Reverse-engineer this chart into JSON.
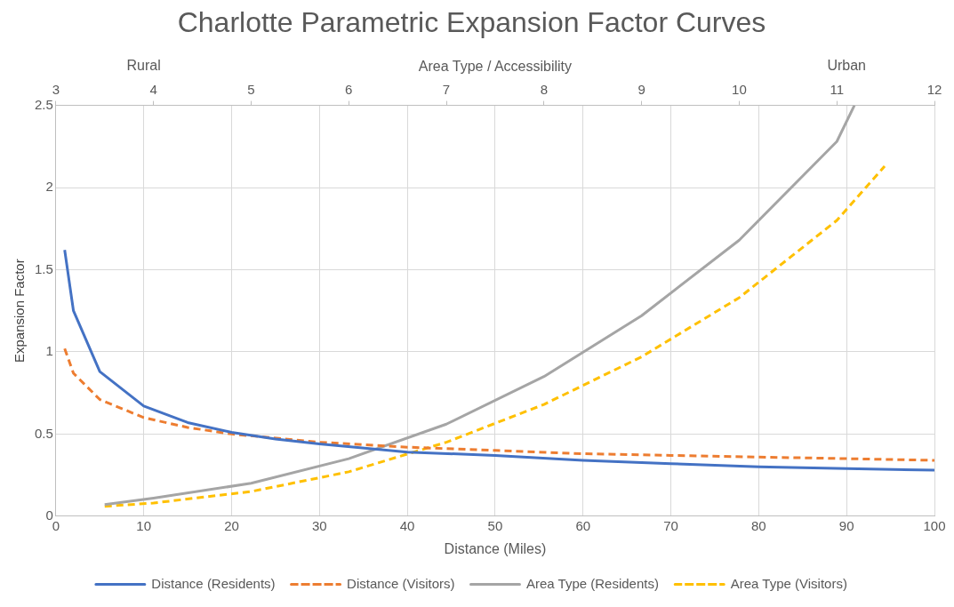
{
  "chart_data": {
    "type": "line",
    "title": "Charlotte Parametric Expansion Factor Curves",
    "xlabel": "Distance (Miles)",
    "ylabel": "Expansion Factor",
    "x2label": "Area Type / Accessibility",
    "annotations": [
      "Rural",
      "Urban"
    ],
    "xlim": [
      0,
      100
    ],
    "xticks": [
      0,
      10,
      20,
      30,
      40,
      50,
      60,
      70,
      80,
      90,
      100
    ],
    "x2lim": [
      3,
      12
    ],
    "x2ticks": [
      3,
      4,
      5,
      6,
      7,
      8,
      9,
      10,
      11,
      12
    ],
    "ylim": [
      0,
      2.5
    ],
    "yticks": [
      0,
      0.5,
      1,
      1.5,
      2,
      2.5
    ],
    "grid": true,
    "legend": "bottom",
    "marker": "none",
    "series": [
      {
        "name": "Distance (Residents)",
        "color": "#4472c4",
        "line_style": "solid",
        "x": [
          1,
          2,
          5,
          10,
          15,
          20,
          25,
          30,
          40,
          50,
          60,
          70,
          80,
          90,
          100
        ],
        "values": [
          1.62,
          1.25,
          0.88,
          0.67,
          0.57,
          0.51,
          0.47,
          0.44,
          0.39,
          0.37,
          0.34,
          0.32,
          0.3,
          0.29,
          0.28
        ]
      },
      {
        "name": "Distance (Visitors)",
        "color": "#ed7d31",
        "line_style": "dashed",
        "x": [
          1,
          2,
          5,
          10,
          15,
          20,
          30,
          40,
          50,
          60,
          70,
          80,
          90,
          100
        ],
        "values": [
          1.02,
          0.87,
          0.71,
          0.6,
          0.54,
          0.5,
          0.45,
          0.42,
          0.4,
          0.38,
          0.37,
          0.36,
          0.35,
          0.34
        ]
      },
      {
        "name": "Area Type (Residents)",
        "color": "#a5a5a5",
        "line_style": "solid",
        "axis": "x2",
        "x": [
          3.5,
          4,
          5,
          6,
          7,
          8,
          9,
          10,
          11,
          11.18
        ],
        "values": [
          0.07,
          0.11,
          0.2,
          0.35,
          0.56,
          0.85,
          1.22,
          1.68,
          2.28,
          2.5
        ]
      },
      {
        "name": "Area Type (Visitors)",
        "color": "#ffc000",
        "line_style": "dashed",
        "axis": "x2",
        "x": [
          3.5,
          4,
          5,
          6,
          7,
          8,
          9,
          10,
          11,
          11.49
        ],
        "values": [
          0.06,
          0.08,
          0.15,
          0.27,
          0.45,
          0.68,
          0.97,
          1.33,
          1.8,
          2.13
        ]
      }
    ]
  }
}
